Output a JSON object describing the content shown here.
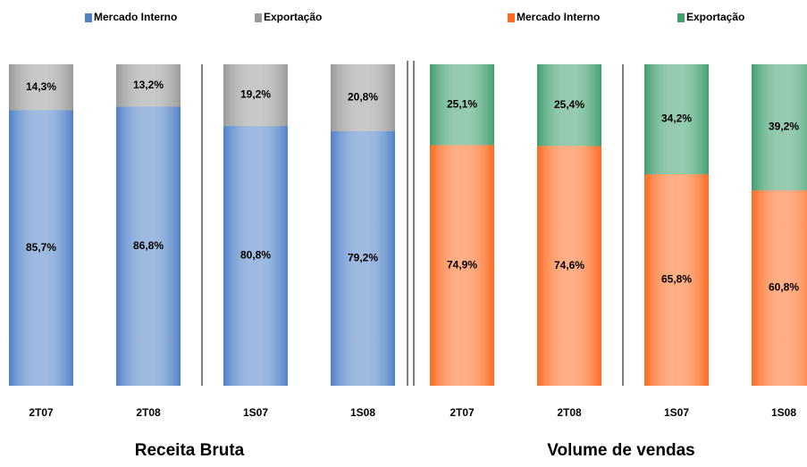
{
  "chart_data": [
    {
      "type": "bar",
      "stacked": true,
      "title": "Receita Bruta",
      "categories": [
        "2T07",
        "2T08",
        "1S07",
        "1S08"
      ],
      "series": [
        {
          "name": "Mercado Interno",
          "color": "#4f81c7",
          "values": [
            85.7,
            86.8,
            80.8,
            79.2
          ],
          "value_labels": [
            "85,7%",
            "86,8%",
            "80,8%",
            "79,2%"
          ]
        },
        {
          "name": "Exportação",
          "color": "#9a9a9a",
          "values": [
            14.3,
            13.2,
            19.2,
            20.8
          ],
          "value_labels": [
            "14,3%",
            "13,2%",
            "19,2%",
            "20,8%"
          ]
        }
      ]
    },
    {
      "type": "bar",
      "stacked": true,
      "title": "Volume de vendas",
      "categories": [
        "2T07",
        "2T08",
        "1S07",
        "1S08"
      ],
      "series": [
        {
          "name": "Mercado Interno",
          "color": "#ff6a1f",
          "values": [
            74.9,
            74.6,
            65.8,
            60.8
          ],
          "value_labels": [
            "74,9%",
            "74,6%",
            "65,8%",
            "60,8%"
          ]
        },
        {
          "name": "Exportação",
          "color": "#3f9f6f",
          "values": [
            25.1,
            25.4,
            34.2,
            39.2
          ],
          "value_labels": [
            "25,1%",
            "25,4%",
            "34,2%",
            "39,2%"
          ]
        }
      ]
    }
  ]
}
